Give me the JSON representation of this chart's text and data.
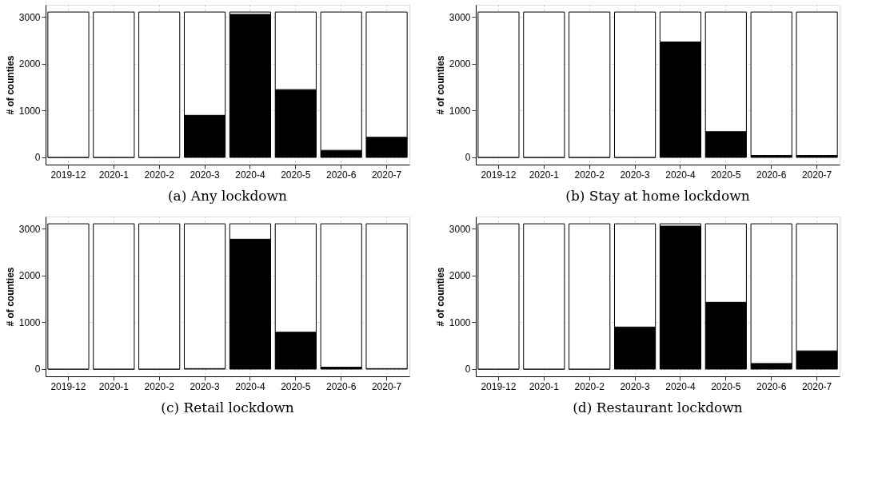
{
  "chart_data": [
    {
      "type": "bar",
      "title": "(a) Any lockdown",
      "ylabel": "# of counties",
      "stacked": true,
      "grid": true,
      "ylim": [
        -155,
        3265
      ],
      "yticks": [
        0,
        1000,
        2000,
        3000
      ],
      "categories": [
        "2019-12",
        "2020-1",
        "2020-2",
        "2020-3",
        "2020-4",
        "2020-5",
        "2020-6",
        "2020-7"
      ],
      "series": [
        {
          "color": "#000000",
          "values": [
            0,
            0,
            0,
            900,
            3060,
            1450,
            150,
            430
          ]
        },
        {
          "color": "#ffffff",
          "values": [
            3110,
            3110,
            3110,
            2210,
            50,
            1660,
            2960,
            2680
          ]
        }
      ]
    },
    {
      "type": "bar",
      "title": "(b) Stay at home lockdown",
      "ylabel": "# of counties",
      "stacked": true,
      "grid": true,
      "ylim": [
        -155,
        3265
      ],
      "yticks": [
        0,
        1000,
        2000,
        3000
      ],
      "categories": [
        "2019-12",
        "2020-1",
        "2020-2",
        "2020-3",
        "2020-4",
        "2020-5",
        "2020-6",
        "2020-7"
      ],
      "series": [
        {
          "color": "#000000",
          "values": [
            0,
            0,
            0,
            0,
            2470,
            550,
            40,
            40
          ]
        },
        {
          "color": "#ffffff",
          "values": [
            3110,
            3110,
            3110,
            3110,
            640,
            2560,
            3070,
            3070
          ]
        }
      ]
    },
    {
      "type": "bar",
      "title": "(c) Retail lockdown",
      "ylabel": "# of counties",
      "stacked": true,
      "grid": true,
      "ylim": [
        -155,
        3265
      ],
      "yticks": [
        0,
        1000,
        2000,
        3000
      ],
      "categories": [
        "2019-12",
        "2020-1",
        "2020-2",
        "2020-3",
        "2020-4",
        "2020-5",
        "2020-6",
        "2020-7"
      ],
      "series": [
        {
          "color": "#000000",
          "values": [
            0,
            0,
            0,
            10,
            2780,
            790,
            40,
            10
          ]
        },
        {
          "color": "#ffffff",
          "values": [
            3110,
            3110,
            3110,
            3100,
            330,
            2320,
            3070,
            3100
          ]
        }
      ]
    },
    {
      "type": "bar",
      "title": "(d) Restaurant lockdown",
      "ylabel": "# of counties",
      "stacked": true,
      "grid": true,
      "ylim": [
        -155,
        3265
      ],
      "yticks": [
        0,
        1000,
        2000,
        3000
      ],
      "categories": [
        "2019-12",
        "2020-1",
        "2020-2",
        "2020-3",
        "2020-4",
        "2020-5",
        "2020-6",
        "2020-7"
      ],
      "series": [
        {
          "color": "#000000",
          "values": [
            0,
            0,
            0,
            900,
            3060,
            1430,
            120,
            390
          ]
        },
        {
          "color": "#ffffff",
          "values": [
            3110,
            3110,
            3110,
            2210,
            50,
            1680,
            2990,
            2720
          ]
        }
      ]
    }
  ]
}
